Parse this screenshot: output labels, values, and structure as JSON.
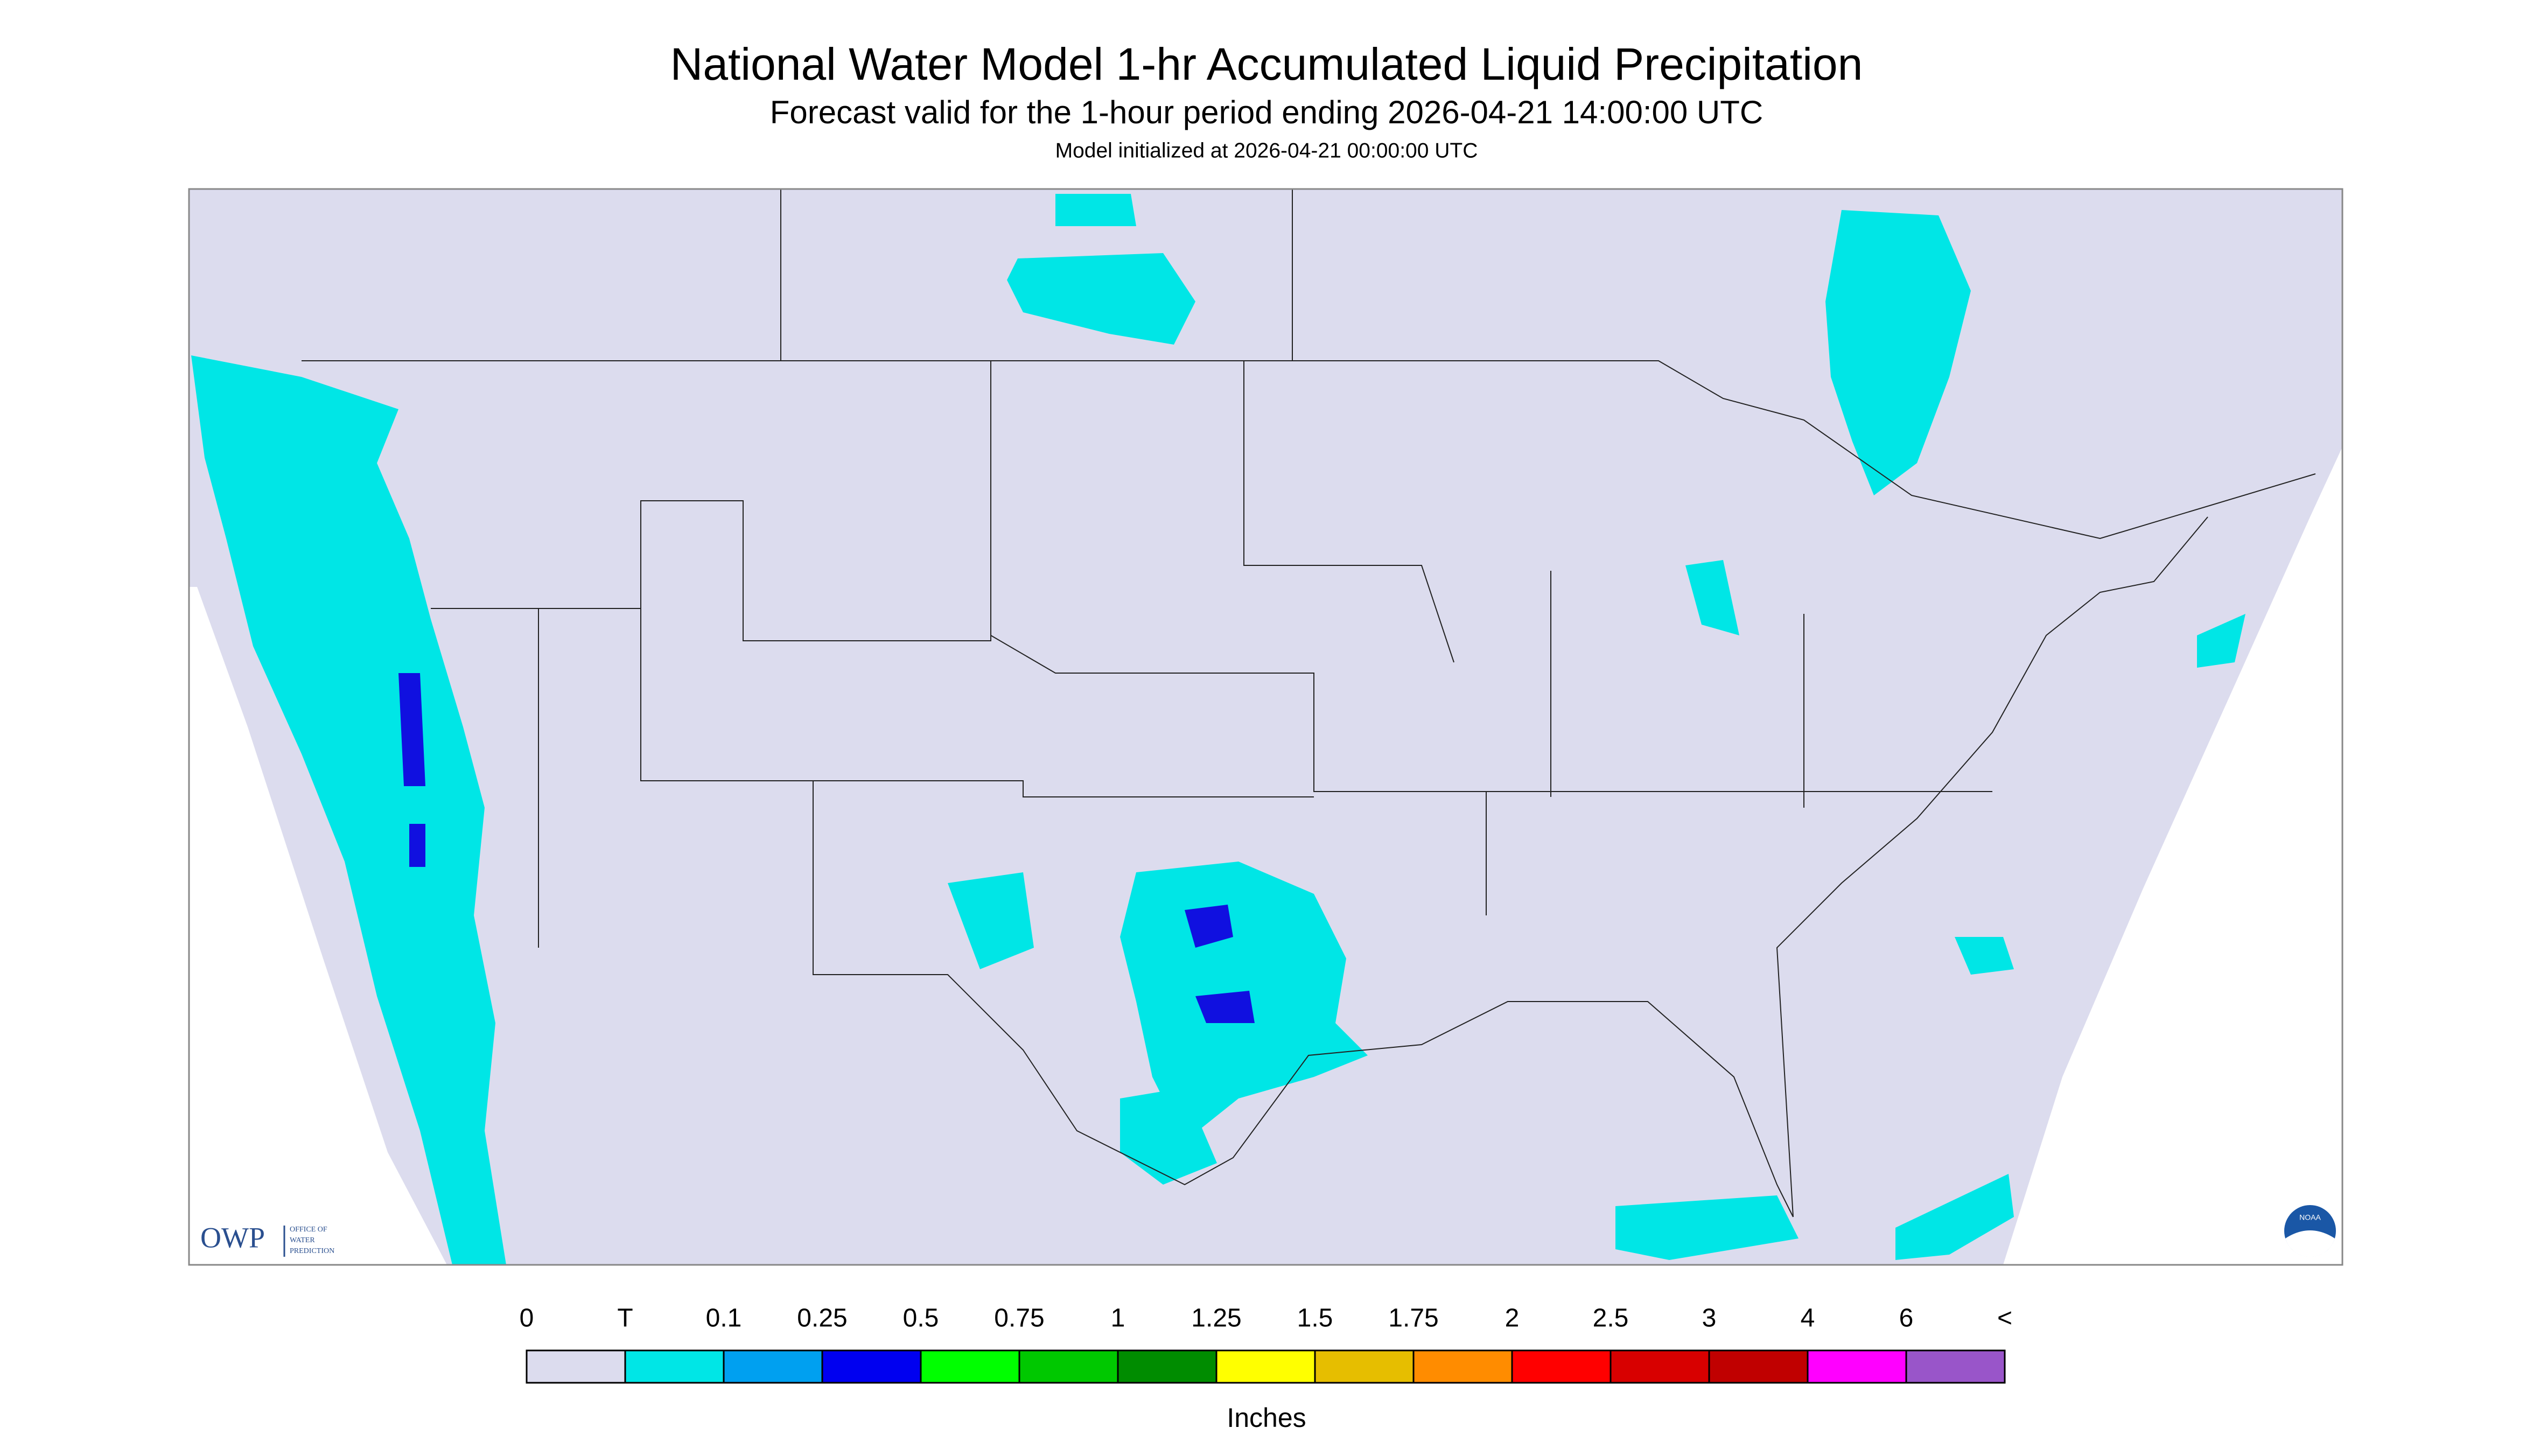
{
  "header": {
    "title": "National Water Model 1-hr Accumulated Liquid Precipitation",
    "subtitle": "Forecast valid for the 1-hour period ending 2026-04-21 14:00:00 UTC",
    "init": "Model initialized at 2026-04-21 00:00:00 UTC"
  },
  "legend": {
    "labels": [
      "0",
      "T",
      "0.1",
      "0.25",
      "0.5",
      "0.75",
      "1",
      "1.25",
      "1.5",
      "1.75",
      "2",
      "2.5",
      "3",
      "4",
      "6",
      "<"
    ],
    "colors": [
      "#dcdcee",
      "#00e6e6",
      "#00a0f0",
      "#0000f0",
      "#00ff00",
      "#00c800",
      "#008c00",
      "#ffff00",
      "#e6be00",
      "#ff8c00",
      "#ff0000",
      "#d80000",
      "#c00000",
      "#ff00ff",
      "#9955c9"
    ],
    "unit": "Inches"
  },
  "logos": {
    "owp": "OWP",
    "owp_lines": [
      "OFFICE OF",
      "WATER",
      "PREDICTION"
    ],
    "noaa": "NOAA"
  }
}
